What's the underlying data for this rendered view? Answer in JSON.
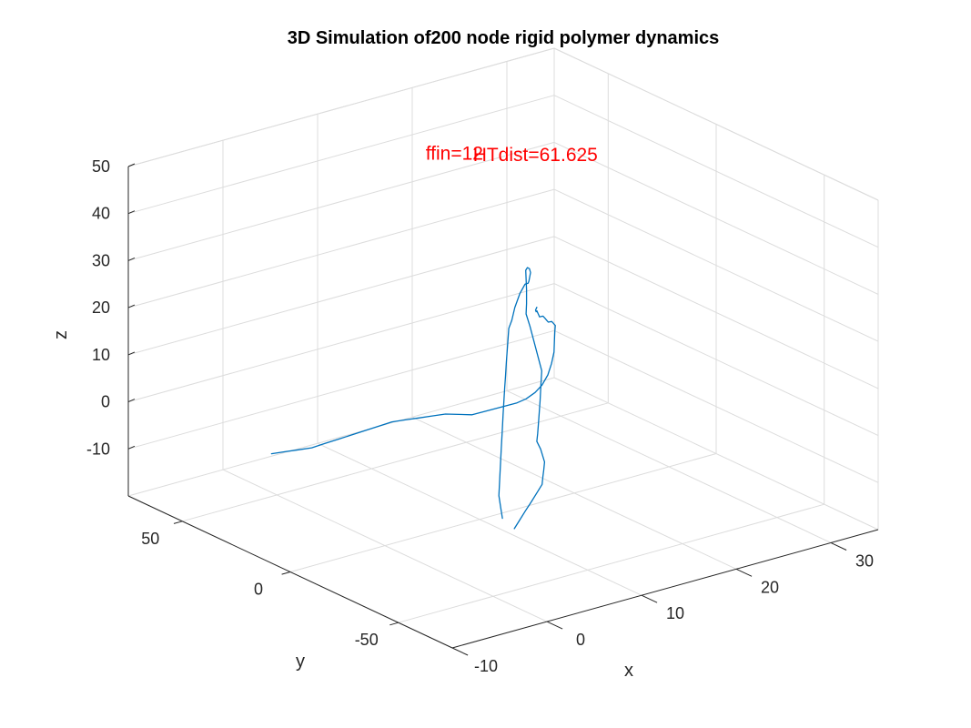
{
  "chart_data": {
    "type": "line",
    "projection": "3d",
    "title": "3D Simulation of200 node rigid polymer dynamics",
    "xlabel": "x",
    "ylabel": "y",
    "zlabel": "z",
    "xlim": [
      -10,
      35
    ],
    "ylim": [
      -75,
      75
    ],
    "zlim": [
      -20,
      50
    ],
    "x_ticks": [
      -10,
      0,
      10,
      20,
      30
    ],
    "y_ticks": [
      -50,
      0,
      50
    ],
    "z_ticks": [
      -10,
      0,
      10,
      20,
      30,
      40,
      50
    ],
    "grid": true,
    "annotations": [
      {
        "text": "ffin=12",
        "x": 10,
        "y": 25,
        "z": 51,
        "color": "#ff0000"
      },
      {
        "text": "HTdist=61.625",
        "x": 15,
        "y": 25,
        "z": 48,
        "color": "#ff0000"
      }
    ],
    "series": [
      {
        "color": "#0072bd",
        "points": [
          [
            5.0,
            -38.0,
            -11.0
          ],
          [
            6.5,
            -34.0,
            -10.8
          ],
          [
            8.0,
            -30.0,
            -10.6
          ],
          [
            9.5,
            -26.0,
            -10.5
          ],
          [
            11.0,
            -22.0,
            -10.3
          ],
          [
            12.5,
            -18.0,
            -10.1
          ],
          [
            13.5,
            -14.0,
            -9.8
          ],
          [
            14.5,
            -10.0,
            -9.9
          ],
          [
            15.5,
            -6.0,
            -9.6
          ],
          [
            16.0,
            -2.0,
            -8.0
          ],
          [
            16.5,
            2.0,
            -7.5
          ],
          [
            17.5,
            6.0,
            -7.3
          ],
          [
            18.5,
            10.0,
            -6.5
          ],
          [
            19.5,
            14.0,
            -5.5
          ],
          [
            20.5,
            18.0,
            -4.5
          ],
          [
            21.5,
            22.0,
            -2.5
          ],
          [
            22.5,
            26.0,
            -1.0
          ],
          [
            23.0,
            30.0,
            1.0
          ],
          [
            23.5,
            34.0,
            3.0
          ],
          [
            24.0,
            38.0,
            5.0
          ],
          [
            24.5,
            42.0,
            6.5
          ],
          [
            25.0,
            44.0,
            8.0
          ],
          [
            25.0,
            44.0,
            11.0
          ],
          [
            24.5,
            42.0,
            14.0
          ],
          [
            24.0,
            40.0,
            16.5
          ],
          [
            23.5,
            37.0,
            18.0
          ],
          [
            22.8,
            33.0,
            19.0
          ],
          [
            22.0,
            29.0,
            19.5
          ],
          [
            21.0,
            25.0,
            20.0
          ],
          [
            20.0,
            21.0,
            20.5
          ],
          [
            19.0,
            17.0,
            21.5
          ],
          [
            18.0,
            14.0,
            22.5
          ],
          [
            17.0,
            12.0,
            21.5
          ],
          [
            16.0,
            10.0,
            19.5
          ],
          [
            15.0,
            7.0,
            18.0
          ],
          [
            14.0,
            4.0,
            17.5
          ],
          [
            13.0,
            0.0,
            16.5
          ],
          [
            12.0,
            -4.0,
            15.5
          ],
          [
            11.0,
            -8.0,
            14.5
          ],
          [
            10.0,
            -12.0,
            13.0
          ],
          [
            9.0,
            -16.0,
            12.0
          ],
          [
            8.0,
            -20.0,
            10.5
          ],
          [
            7.0,
            -24.0,
            9.0
          ],
          [
            6.0,
            -28.0,
            7.0
          ],
          [
            5.0,
            -32.0,
            5.0
          ],
          [
            4.0,
            -36.0,
            3.0
          ],
          [
            3.0,
            -40.0,
            1.0
          ],
          [
            2.0,
            -44.0,
            -1.0
          ],
          [
            1.5,
            -47.0,
            -2.5
          ],
          [
            1.0,
            -50.0,
            -4.0
          ]
        ]
      },
      {
        "color": "#0072bd",
        "points": [
          [
            16.5,
            2.0,
            21.0
          ],
          [
            16.0,
            0.0,
            21.5
          ],
          [
            15.5,
            -2.0,
            22.0
          ],
          [
            15.0,
            -4.0,
            22.5
          ],
          [
            14.5,
            -6.5,
            23.0
          ],
          [
            14.0,
            -9.0,
            24.0
          ],
          [
            13.5,
            -11.5,
            24.5
          ],
          [
            13.0,
            -14.0,
            25.0
          ],
          [
            12.5,
            -16.5,
            25.5
          ],
          [
            12.0,
            -19.0,
            26.0
          ],
          [
            11.5,
            -22.0,
            27.0
          ],
          [
            11.0,
            -25.0,
            28.0
          ],
          [
            10.5,
            -28.0,
            28.5
          ],
          [
            10.0,
            -31.0,
            29.0
          ],
          [
            9.5,
            -34.0,
            29.5
          ],
          [
            9.0,
            -37.0,
            30.5
          ],
          [
            8.5,
            -40.0,
            31.5
          ],
          [
            8.0,
            -43.0,
            32.0
          ],
          [
            7.5,
            -46.0,
            32.5
          ],
          [
            7.0,
            -48.0,
            32.0
          ],
          [
            6.5,
            -50.0,
            31.0
          ],
          [
            6.0,
            -52.0,
            29.0
          ],
          [
            5.5,
            -53.0,
            27.0
          ],
          [
            5.0,
            -53.5,
            25.0
          ],
          [
            4.5,
            -53.0,
            23.0
          ],
          [
            4.0,
            -52.0,
            21.5
          ],
          [
            3.5,
            -50.0,
            20.0
          ],
          [
            3.0,
            -48.0,
            19.0
          ],
          [
            2.5,
            -45.0,
            18.0
          ],
          [
            2.0,
            -42.0,
            17.0
          ],
          [
            1.5,
            -39.0,
            16.0
          ],
          [
            1.0,
            -36.0,
            15.0
          ],
          [
            0.5,
            -32.0,
            14.5
          ],
          [
            0.0,
            -28.0,
            14.0
          ],
          [
            -0.5,
            -24.0,
            13.0
          ],
          [
            -1.0,
            -20.0,
            12.0
          ],
          [
            -1.5,
            -16.0,
            11.0
          ],
          [
            -2.0,
            -12.0,
            10.0
          ],
          [
            -2.5,
            -8.0,
            8.5
          ],
          [
            -3.0,
            -4.0,
            7.0
          ],
          [
            -3.5,
            0.0,
            5.5
          ],
          [
            -4.0,
            4.0,
            4.0
          ],
          [
            -4.5,
            8.0,
            2.5
          ],
          [
            -5.0,
            12.0,
            1.0
          ],
          [
            -5.5,
            16.0,
            0.0
          ],
          [
            -6.0,
            20.0,
            -1.0
          ],
          [
            -6.5,
            24.0,
            -2.0
          ]
        ]
      }
    ]
  }
}
